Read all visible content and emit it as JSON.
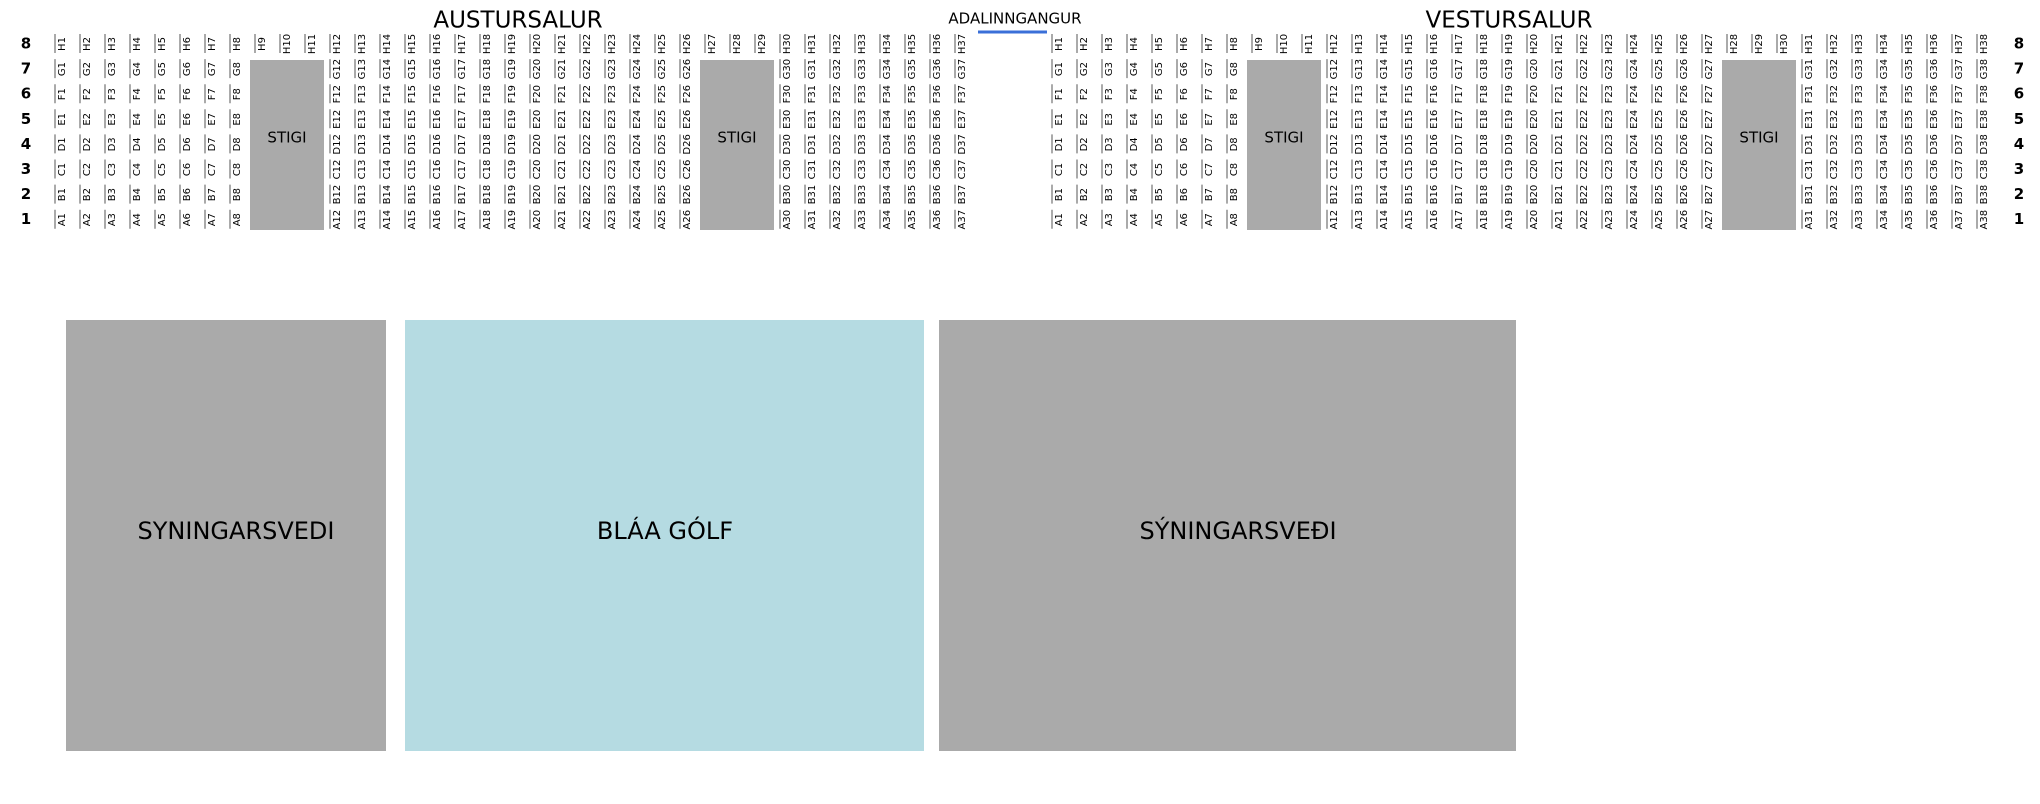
{
  "entrance": "ADALINNGANGUR",
  "row_labels": [
    "8",
    "7",
    "6",
    "5",
    "4",
    "3",
    "2",
    "1"
  ],
  "halls": [
    {
      "title": "AUSTURSALUR",
      "stairs": [
        "STIGI",
        "STIGI"
      ],
      "rows": [
        [
          "H1",
          "H2",
          "H3",
          "H4",
          "H5",
          "H6",
          "H7",
          "H8",
          "H9",
          "H10",
          "H11",
          "H12",
          "H13",
          "H14",
          "H15",
          "H16",
          "H17",
          "H18",
          "H19",
          "H20",
          "H21",
          "H22",
          "H23",
          "H24",
          "H25",
          "H26",
          "H27",
          "H28",
          "H29",
          "H30",
          "H31",
          "H32",
          "H33",
          "H34",
          "H35",
          "H36",
          "H37"
        ],
        [
          "G1",
          "G2",
          "G3",
          "G4",
          "G5",
          "G6",
          "G7",
          "G8",
          "G12",
          "G13",
          "G14",
          "G15",
          "G16",
          "G17",
          "G18",
          "G19",
          "G20",
          "G21",
          "G22",
          "G23",
          "G24",
          "G25",
          "G26",
          "G30",
          "G31",
          "G32",
          "G33",
          "G34",
          "G35",
          "G36",
          "G37"
        ],
        [
          "F1",
          "F2",
          "F3",
          "F4",
          "F5",
          "F6",
          "F7",
          "F8",
          "F12",
          "F13",
          "F14",
          "F15",
          "F16",
          "F17",
          "F18",
          "F19",
          "F20",
          "F21",
          "F22",
          "F23",
          "F24",
          "F25",
          "F26",
          "F30",
          "F31",
          "F32",
          "F33",
          "F34",
          "F35",
          "F36",
          "F37"
        ],
        [
          "E1",
          "E2",
          "E3",
          "E4",
          "E5",
          "E6",
          "E7",
          "E8",
          "E12",
          "E13",
          "E14",
          "E15",
          "E16",
          "E17",
          "E18",
          "E19",
          "E20",
          "E21",
          "E22",
          "E23",
          "E24",
          "E25",
          "E26",
          "E30",
          "E31",
          "E32",
          "E33",
          "E34",
          "E35",
          "E36",
          "E37"
        ],
        [
          "D1",
          "D2",
          "D3",
          "D4",
          "D5",
          "D6",
          "D7",
          "D8",
          "D12",
          "D13",
          "D14",
          "D15",
          "D16",
          "D17",
          "D18",
          "D19",
          "D20",
          "D21",
          "D22",
          "D23",
          "D24",
          "D25",
          "D26",
          "D30",
          "D31",
          "D32",
          "D33",
          "D34",
          "D35",
          "D36",
          "D37"
        ],
        [
          "C1",
          "C2",
          "C3",
          "C4",
          "C5",
          "C6",
          "C7",
          "C8",
          "C12",
          "C13",
          "C14",
          "C15",
          "C16",
          "C17",
          "C18",
          "C19",
          "C20",
          "C21",
          "C22",
          "C23",
          "C24",
          "C25",
          "C26",
          "C30",
          "C31",
          "C32",
          "C33",
          "C34",
          "C35",
          "C36",
          "C37"
        ],
        [
          "B1",
          "B2",
          "B3",
          "B4",
          "B5",
          "B6",
          "B7",
          "B8",
          "B12",
          "B13",
          "B14",
          "B15",
          "B16",
          "B17",
          "B18",
          "B19",
          "B20",
          "B21",
          "B22",
          "B23",
          "B24",
          "B25",
          "B26",
          "B30",
          "B31",
          "B32",
          "B33",
          "B34",
          "B35",
          "B36",
          "B37"
        ],
        [
          "A1",
          "A2",
          "A3",
          "A4",
          "A5",
          "A6",
          "A7",
          "A8",
          "A12",
          "A13",
          "A14",
          "A15",
          "A16",
          "A17",
          "A18",
          "A19",
          "A20",
          "A21",
          "A22",
          "A23",
          "A24",
          "A25",
          "A26",
          "A30",
          "A31",
          "A32",
          "A33",
          "A34",
          "A35",
          "A36",
          "A37"
        ]
      ]
    },
    {
      "title": "VESTURSALUR",
      "stairs": [
        "STIGI",
        "STIGI"
      ],
      "rows": [
        [
          "H1",
          "H2",
          "H3",
          "H4",
          "H5",
          "H6",
          "H7",
          "H8",
          "H9",
          "H10",
          "H11",
          "H12",
          "H13",
          "H14",
          "H15",
          "H16",
          "H17",
          "H18",
          "H19",
          "H20",
          "H21",
          "H22",
          "H23",
          "H24",
          "H25",
          "H26",
          "H27",
          "H28",
          "H29",
          "H30",
          "H31",
          "H32",
          "H33",
          "H34",
          "H35",
          "H36",
          "H37",
          "H38"
        ],
        [
          "G1",
          "G2",
          "G3",
          "G4",
          "G5",
          "G6",
          "G7",
          "G8",
          "G12",
          "G13",
          "G14",
          "G15",
          "G16",
          "G17",
          "G18",
          "G19",
          "G20",
          "G21",
          "G22",
          "G23",
          "G24",
          "G25",
          "G26",
          "G27",
          "G31",
          "G32",
          "G33",
          "G34",
          "G35",
          "G36",
          "G37",
          "G38"
        ],
        [
          "F1",
          "F2",
          "F3",
          "F4",
          "F5",
          "F6",
          "F7",
          "F8",
          "F12",
          "F13",
          "F14",
          "F15",
          "F16",
          "F17",
          "F18",
          "F19",
          "F20",
          "F21",
          "F22",
          "F23",
          "F24",
          "F25",
          "F26",
          "F27",
          "F31",
          "F32",
          "F33",
          "F34",
          "F35",
          "F36",
          "F37",
          "F38"
        ],
        [
          "E1",
          "E2",
          "E3",
          "E4",
          "E5",
          "E6",
          "E7",
          "E8",
          "E12",
          "E13",
          "E14",
          "E15",
          "E16",
          "E17",
          "E18",
          "E19",
          "E20",
          "E21",
          "E22",
          "E23",
          "E24",
          "E25",
          "E26",
          "E27",
          "E31",
          "E32",
          "E33",
          "E34",
          "E35",
          "E36",
          "E37",
          "E38"
        ],
        [
          "D1",
          "D2",
          "D3",
          "D4",
          "D5",
          "D6",
          "D7",
          "D8",
          "D12",
          "D13",
          "D14",
          "D15",
          "D16",
          "D17",
          "D18",
          "D19",
          "D20",
          "D21",
          "D22",
          "D23",
          "D24",
          "D25",
          "D26",
          "D27",
          "D31",
          "D32",
          "D33",
          "D34",
          "D35",
          "D36",
          "D37",
          "D38"
        ],
        [
          "C1",
          "C2",
          "C3",
          "C4",
          "C5",
          "C6",
          "C7",
          "C8",
          "C12",
          "C13",
          "C14",
          "C15",
          "C16",
          "C17",
          "C18",
          "C19",
          "C20",
          "C21",
          "C22",
          "C23",
          "C24",
          "C25",
          "C26",
          "C27",
          "C31",
          "C32",
          "C33",
          "C34",
          "C35",
          "C36",
          "C37",
          "C38"
        ],
        [
          "B1",
          "B2",
          "B3",
          "B4",
          "B5",
          "B6",
          "B7",
          "B8",
          "B12",
          "B13",
          "B14",
          "B15",
          "B16",
          "B17",
          "B18",
          "B19",
          "B20",
          "B21",
          "B22",
          "B23",
          "B24",
          "B25",
          "B26",
          "B27",
          "B31",
          "B32",
          "B33",
          "B34",
          "B35",
          "B36",
          "B37",
          "B38"
        ],
        [
          "A1",
          "A2",
          "A3",
          "A4",
          "A5",
          "A6",
          "A7",
          "A8",
          "A12",
          "A13",
          "A14",
          "A15",
          "A16",
          "A17",
          "A18",
          "A19",
          "A20",
          "A21",
          "A22",
          "A23",
          "A24",
          "A25",
          "A26",
          "A27",
          "A31",
          "A32",
          "A33",
          "A34",
          "A35",
          "A36",
          "A37",
          "A38"
        ]
      ]
    }
  ],
  "areas": [
    "SYNINGARSVEDI",
    "BLÁA GÓLF",
    "SÝNINGARSVEÐI"
  ]
}
